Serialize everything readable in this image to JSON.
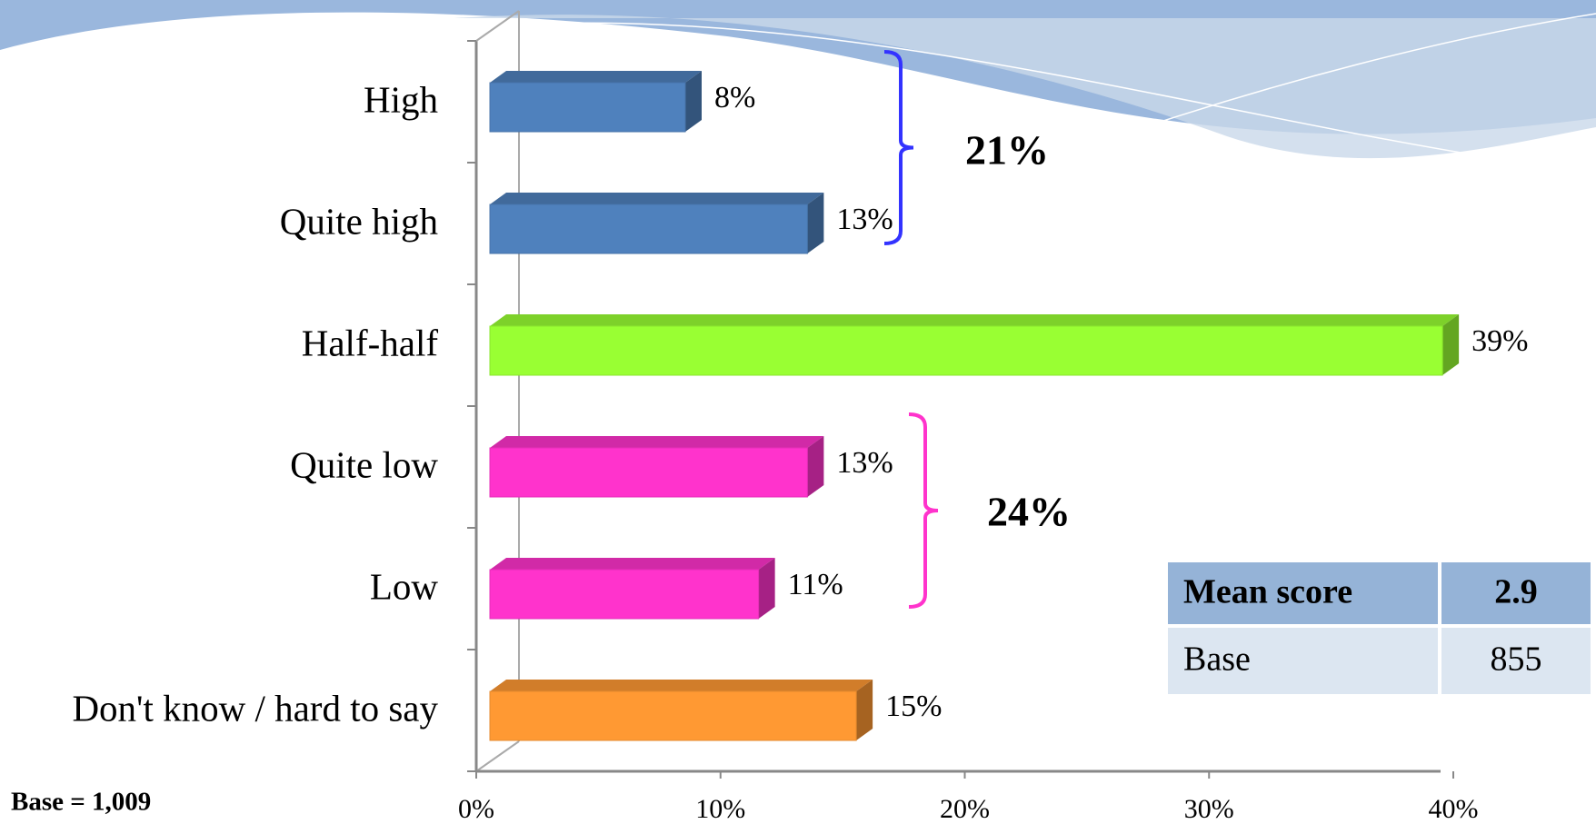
{
  "chart_data": {
    "type": "bar",
    "orientation": "horizontal",
    "categories": [
      "High",
      "Quite high",
      "Half-half",
      "Quite low",
      "Low",
      "Don't know / hard to say"
    ],
    "values": [
      8,
      13,
      39,
      13,
      11,
      15
    ],
    "value_labels": [
      "8%",
      "13%",
      "39%",
      "13%",
      "11%",
      "15%"
    ],
    "colors": [
      "#4f81bd",
      "#4f81bd",
      "#99ff33",
      "#ff33cc",
      "#ff33cc",
      "#ff9933"
    ],
    "xlim": [
      0,
      40
    ],
    "xticks": [
      {
        "value": 0,
        "label": "0%"
      },
      {
        "value": 10,
        "label": "10%"
      },
      {
        "value": 20,
        "label": "20%"
      },
      {
        "value": 30,
        "label": "30%"
      },
      {
        "value": 40,
        "label": "40%"
      }
    ],
    "annotations": [
      {
        "text": "21%",
        "color": "#3333ff"
      },
      {
        "text": "24%",
        "color": "#ff33cc"
      }
    ],
    "footnote": "Base = 1,009"
  },
  "table": {
    "rows": [
      [
        "Mean score",
        2.9
      ],
      [
        "Base",
        855
      ]
    ]
  }
}
